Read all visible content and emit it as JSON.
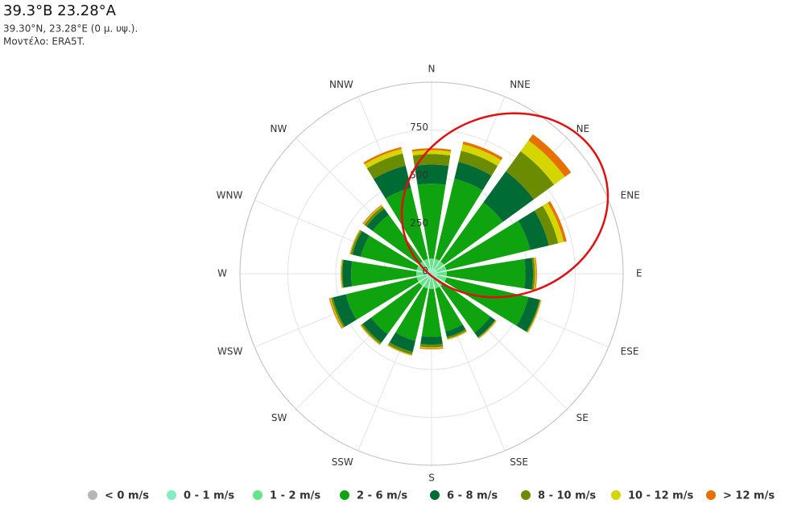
{
  "chart_data": {
    "type": "windrose",
    "title": "39.3°Β 23.28°Α",
    "subtitle": "39.30°N, 23.28°E (0 μ. υψ.).",
    "model": "Μοντέλο: ERA5T.",
    "categories": [
      "N",
      "NNE",
      "NE",
      "ENE",
      "E",
      "ESE",
      "SE",
      "SSE",
      "S",
      "SSW",
      "SW",
      "WSW",
      "W",
      "WNW",
      "NW",
      "NNW"
    ],
    "ylim": [
      0,
      1000
    ],
    "yticks": [
      0,
      250,
      500,
      750
    ],
    "grid": true,
    "legend": "bottom",
    "series": [
      {
        "name": "< 0 m/s",
        "color": "#b4b6bb",
        "values": [
          0,
          0,
          0,
          0,
          0,
          0,
          0,
          0,
          0,
          0,
          0,
          0,
          0,
          0,
          0,
          0
        ]
      },
      {
        "name": "0 - 1 m/s",
        "color": "#80eebd",
        "values": [
          30,
          30,
          30,
          30,
          30,
          30,
          30,
          30,
          30,
          30,
          30,
          30,
          30,
          30,
          30,
          30
        ]
      },
      {
        "name": "1 - 2 m/s",
        "color": "#66e38a",
        "values": [
          50,
          50,
          50,
          50,
          50,
          50,
          50,
          50,
          50,
          50,
          50,
          50,
          50,
          50,
          50,
          50
        ]
      },
      {
        "name": "2 - 6 m/s",
        "color": "#0fa30f",
        "values": [
          390,
          430,
          380,
          450,
          410,
          440,
          300,
          230,
          250,
          280,
          310,
          380,
          340,
          300,
          300,
          380
        ]
      },
      {
        "name": "6 - 8 m/s",
        "color": "#006b35",
        "values": [
          100,
          90,
          200,
          100,
          40,
          60,
          30,
          30,
          40,
          60,
          55,
          70,
          45,
          45,
          40,
          120
        ]
      },
      {
        "name": "8 - 10 m/s",
        "color": "#6b8c00",
        "values": [
          55,
          60,
          130,
          50,
          10,
          5,
          5,
          10,
          15,
          15,
          10,
          10,
          5,
          10,
          15,
          65
        ]
      },
      {
        "name": "10 - 12 m/s",
        "color": "#d5d500",
        "values": [
          20,
          35,
          70,
          30,
          5,
          3,
          3,
          3,
          5,
          3,
          3,
          5,
          3,
          3,
          5,
          25
        ]
      },
      {
        "name": "> 12 m/s",
        "color": "#e87000",
        "values": [
          10,
          15,
          40,
          15,
          5,
          2,
          2,
          2,
          5,
          2,
          2,
          5,
          2,
          2,
          5,
          10
        ]
      }
    ]
  }
}
